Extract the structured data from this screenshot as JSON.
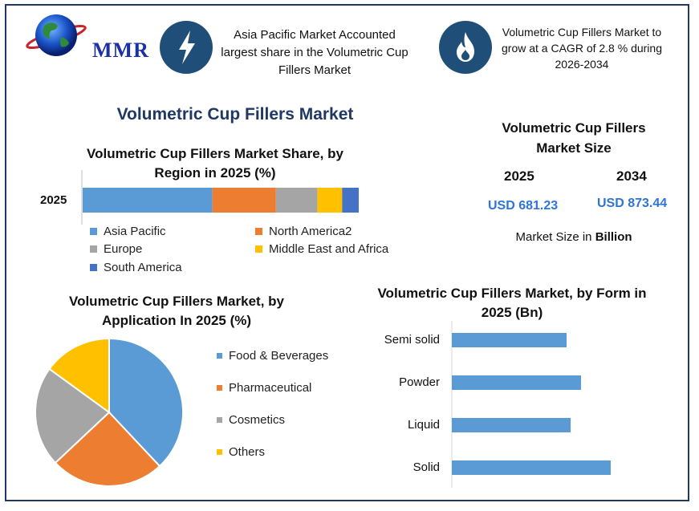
{
  "brand": {
    "logo_text": "MMR"
  },
  "header": {
    "callout_1": "Asia Pacific Market Accounted largest share in the Volumetric Cup Fillers Market",
    "callout_2": "Volumetric Cup Fillers Market to grow at a CAGR of 2.8 % during 2026-2034",
    "icon_1": "lightning-icon",
    "icon_2": "flame-icon"
  },
  "main_title": "Volumetric Cup Fillers Market",
  "market_size": {
    "title": "Volumetric Cup Fillers Market Size",
    "year_1": "2025",
    "year_2": "2034",
    "value_1": "USD 681.23",
    "value_2": "USD 873.44",
    "unit_prefix": "Market Size in ",
    "unit_bold": "Billion"
  },
  "colors": {
    "asia_pacific": "#5b9bd5",
    "north_america": "#ed7d31",
    "europe": "#a5a5a5",
    "middle_east": "#ffc000",
    "south_america": "#4472c4",
    "dark_blue": "#1f3864"
  },
  "chart_data": [
    {
      "type": "bar",
      "orientation": "horizontal-stacked",
      "title": "Volumetric Cup Fillers Market Share, by Region in 2025 (%)",
      "categories": [
        "2025"
      ],
      "series": [
        {
          "name": "Asia Pacific",
          "values": [
            47
          ]
        },
        {
          "name": "North America2",
          "values": [
            23
          ]
        },
        {
          "name": "Europe",
          "values": [
            15
          ]
        },
        {
          "name": "Middle East and Africa",
          "values": [
            9
          ]
        },
        {
          "name": "South America",
          "values": [
            6
          ]
        }
      ],
      "legend": "bottom"
    },
    {
      "type": "pie",
      "title": "Volumetric Cup Fillers Market, by Application In 2025 (%)",
      "labels": [
        "Food & Beverages",
        "Pharmaceutical",
        "Cosmetics",
        "Others"
      ],
      "values": [
        38,
        25,
        22,
        15
      ],
      "legend": "right"
    },
    {
      "type": "bar",
      "orientation": "horizontal",
      "title": "Volumetric Cup Fillers Market, by Form in 2025 (Bn)",
      "categories": [
        "Semi solid",
        "Powder",
        "Liquid",
        "Solid"
      ],
      "values": [
        143,
        161,
        148,
        198
      ],
      "xlim": [
        0,
        250
      ],
      "grid": false
    }
  ]
}
